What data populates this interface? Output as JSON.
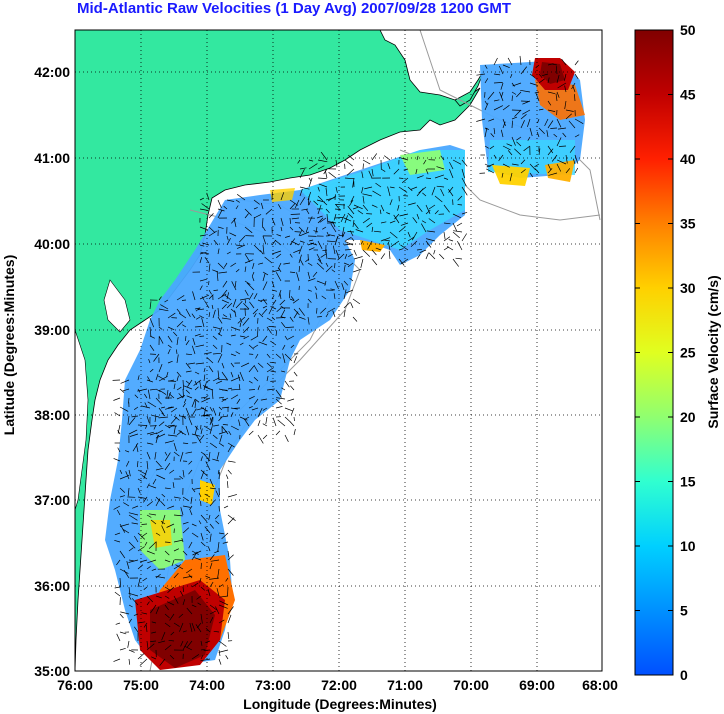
{
  "title": "Mid-Atlantic Raw Velocities (1 Day Avg) 2007/09/28 1200 GMT",
  "x_axis": {
    "label": "Longitude (Degrees:Minutes)",
    "ticks": [
      "76:00",
      "75:00",
      "74:00",
      "73:00",
      "72:00",
      "71:00",
      "70:00",
      "69:00",
      "68:00"
    ]
  },
  "y_axis": {
    "label": "Latitude (Degrees:Minutes)",
    "ticks": [
      "42:00",
      "41:00",
      "40:00",
      "39:00",
      "38:00",
      "37:00",
      "36:00",
      "35:00"
    ]
  },
  "colorbar": {
    "label": "Surface Velocity (cm/s)",
    "ticks": [
      "50",
      "45",
      "40",
      "35",
      "30",
      "25",
      "20",
      "15",
      "10",
      "5",
      "0"
    ],
    "min": 0,
    "max": 50
  },
  "colors": {
    "land": "#33e8a0",
    "title": "#1a1aff",
    "low": "#3b8cff",
    "high": "#800000"
  }
}
